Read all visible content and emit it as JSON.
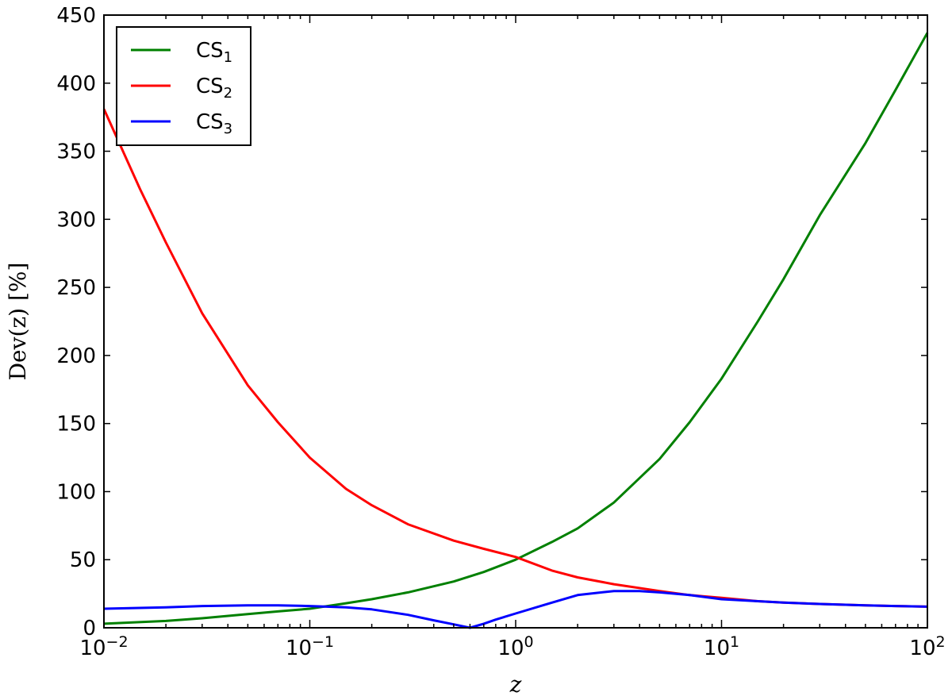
{
  "chart_data": {
    "type": "line",
    "title": "",
    "xlabel": "z",
    "ylabel": "Dev(z) [%]",
    "xscale": "log",
    "xlim": [
      0.01,
      100
    ],
    "ylim": [
      0,
      450
    ],
    "grid": false,
    "legend_position": "top-left",
    "x_ticks": [
      {
        "value": 0.01,
        "base": "10",
        "exp": "−2"
      },
      {
        "value": 0.1,
        "base": "10",
        "exp": "−1"
      },
      {
        "value": 1,
        "base": "10",
        "exp": "0"
      },
      {
        "value": 10,
        "base": "10",
        "exp": "1"
      },
      {
        "value": 100,
        "base": "10",
        "exp": "2"
      }
    ],
    "y_ticks": [
      0,
      50,
      100,
      150,
      200,
      250,
      300,
      350,
      400,
      450
    ],
    "series": [
      {
        "name": "CS1",
        "label_main": "CS",
        "label_sub": "1",
        "color": "#008000",
        "x": [
          0.01,
          0.02,
          0.03,
          0.05,
          0.07,
          0.1,
          0.15,
          0.2,
          0.3,
          0.5,
          0.7,
          1,
          1.5,
          2,
          3,
          5,
          7,
          10,
          15,
          20,
          30,
          50,
          70,
          100
        ],
        "y": [
          3,
          5,
          7,
          10,
          12,
          14,
          18,
          21,
          26,
          34,
          41,
          50,
          63,
          73,
          92,
          124,
          151,
          183,
          225,
          256,
          303,
          356,
          395,
          437
        ]
      },
      {
        "name": "CS2",
        "label_main": "CS",
        "label_sub": "2",
        "color": "#ff0000",
        "x": [
          0.01,
          0.015,
          0.02,
          0.03,
          0.05,
          0.07,
          0.1,
          0.15,
          0.2,
          0.3,
          0.5,
          0.7,
          1,
          1.5,
          2,
          3,
          5,
          7,
          10,
          15,
          20,
          30,
          50,
          70,
          100
        ],
        "y": [
          381,
          322,
          283,
          231,
          178,
          151,
          125,
          102,
          90,
          76,
          64,
          58,
          52,
          42,
          37,
          32,
          27,
          24,
          22,
          19.5,
          18.5,
          17.5,
          16.5,
          16,
          15.5
        ]
      },
      {
        "name": "CS3",
        "label_main": "CS",
        "label_sub": "3",
        "color": "#0000ff",
        "x": [
          0.01,
          0.02,
          0.03,
          0.05,
          0.07,
          0.1,
          0.15,
          0.2,
          0.3,
          0.4,
          0.5,
          0.6,
          0.7,
          0.8,
          1,
          1.5,
          2,
          3,
          4,
          5,
          7,
          10,
          15,
          20,
          30,
          50,
          70,
          100
        ],
        "y": [
          14,
          15,
          16,
          16.5,
          16.5,
          16,
          15,
          13.5,
          9.5,
          5.5,
          2.5,
          0,
          3,
          6,
          10.5,
          18.5,
          24,
          27,
          27,
          26,
          24,
          21,
          19.5,
          18.5,
          17.5,
          16.5,
          16,
          15.5
        ]
      }
    ]
  }
}
